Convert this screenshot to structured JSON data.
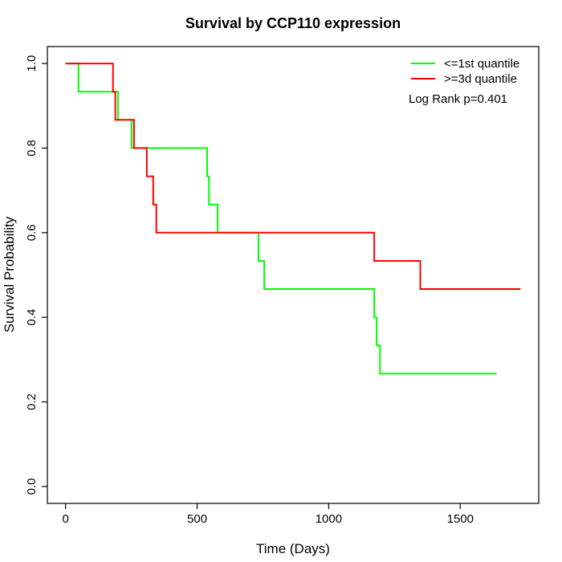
{
  "title": "Survival by CCP110 expression",
  "axes": {
    "xlabel": "Time (Days)",
    "ylabel": "Survival Probability",
    "x_ticks": [
      "0",
      "500",
      "1000",
      "1500"
    ],
    "x_tick_values": [
      0,
      500,
      1000,
      1500
    ],
    "y_ticks": [
      "0.0",
      "0.2",
      "0.4",
      "0.6",
      "0.8",
      "1.0"
    ],
    "y_tick_values": [
      0.0,
      0.2,
      0.4,
      0.6,
      0.8,
      1.0
    ]
  },
  "legend": {
    "items": [
      {
        "label": "<=1st quantile",
        "color": "#00ff00"
      },
      {
        "label": ">=3d quantile",
        "color": "#ff0000"
      }
    ],
    "note": "Log Rank p=0.401"
  },
  "colors": {
    "low_group": "#00ff00",
    "high_group": "#ff0000",
    "axis": "#111111",
    "background": "#ffffff"
  },
  "chart_data": {
    "type": "line",
    "subtype": "kaplan-meier-step",
    "title": "Survival by CCP110 expression",
    "xlabel": "Time (Days)",
    "ylabel": "Survival Probability",
    "xlim": [
      0,
      1729
    ],
    "ylim": [
      0,
      1
    ],
    "grid": false,
    "legend_position": "top-right",
    "annotation": "Log Rank p=0.401",
    "series": [
      {
        "name": "<=1st quantile",
        "color": "#00ff00",
        "points": [
          [
            0,
            1.0
          ],
          [
            49,
            0.9333
          ],
          [
            199,
            0.8667
          ],
          [
            251,
            0.8
          ],
          [
            538,
            0.7333
          ],
          [
            545,
            0.6667
          ],
          [
            578,
            0.6
          ],
          [
            733,
            0.5333
          ],
          [
            755,
            0.4667
          ],
          [
            1173,
            0.4
          ],
          [
            1182,
            0.3333
          ],
          [
            1195,
            0.2667
          ]
        ],
        "end_time": 1638
      },
      {
        "name": ">=3d quantile",
        "color": "#ff0000",
        "points": [
          [
            0,
            1.0
          ],
          [
            180,
            0.9333
          ],
          [
            189,
            0.8667
          ],
          [
            260,
            0.8
          ],
          [
            309,
            0.7333
          ],
          [
            333,
            0.6667
          ],
          [
            345,
            0.6
          ],
          [
            1173,
            0.5333
          ],
          [
            1348,
            0.4667
          ]
        ],
        "end_time": 1729
      }
    ]
  }
}
